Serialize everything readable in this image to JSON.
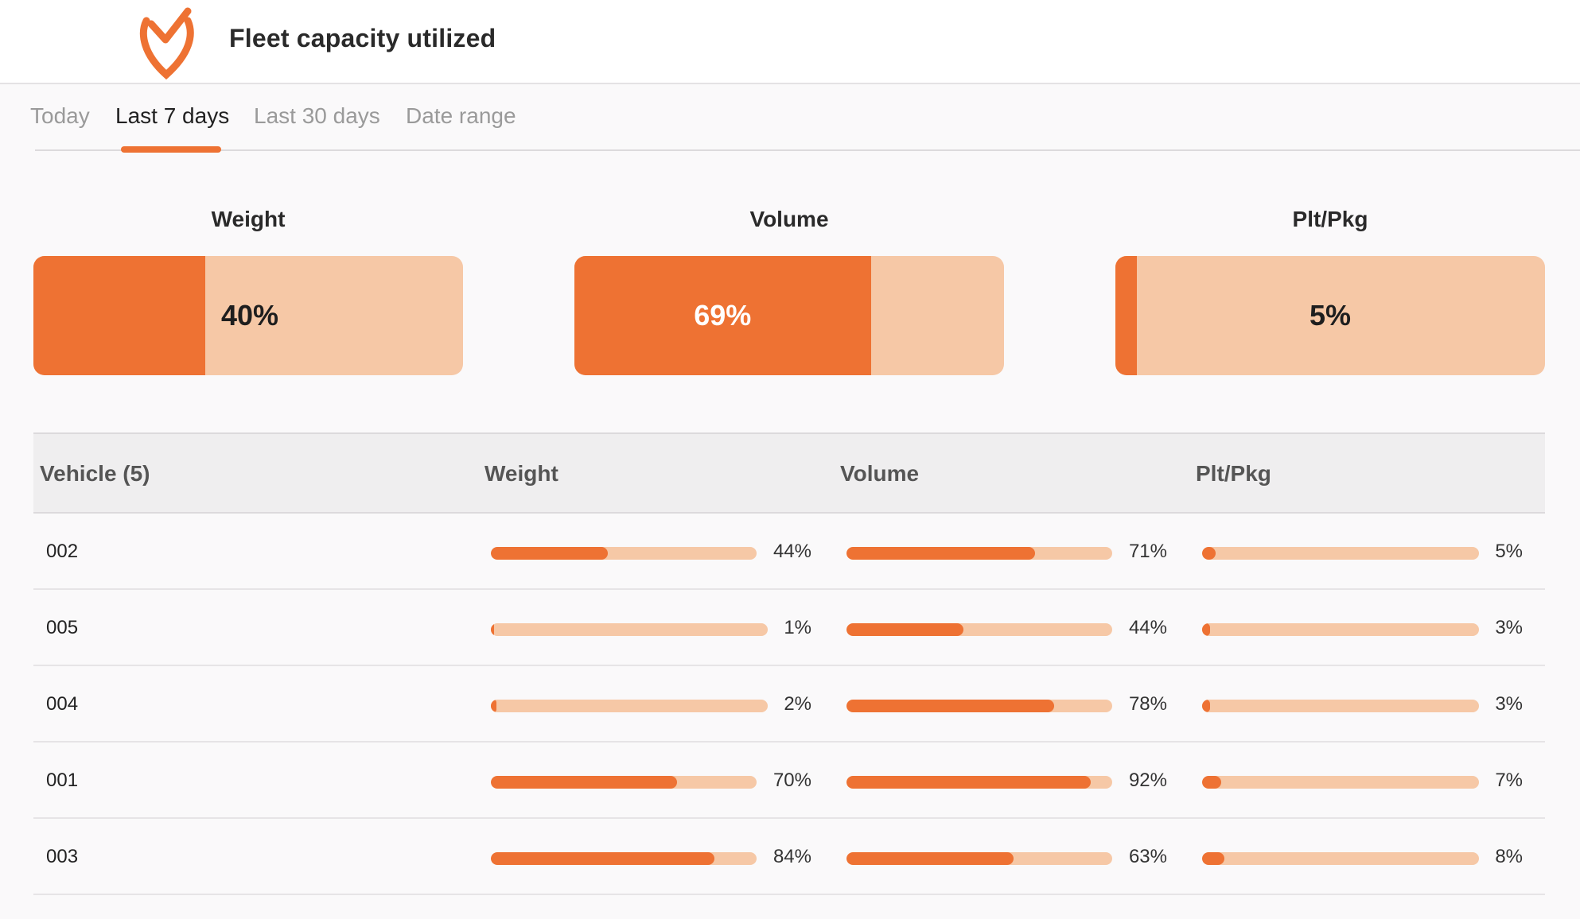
{
  "header": {
    "title": "Fleet capacity utilized",
    "logo_icon": "check-shield-icon"
  },
  "tabs": [
    {
      "label": "Today",
      "active": false
    },
    {
      "label": "Last 7 days",
      "active": true
    },
    {
      "label": "Last 30 days",
      "active": false
    },
    {
      "label": "Date range",
      "active": false
    }
  ],
  "summary": [
    {
      "title": "Weight",
      "percent": 40,
      "label": "40%"
    },
    {
      "title": "Volume",
      "percent": 69,
      "label": "69%"
    },
    {
      "title": "Plt/Pkg",
      "percent": 5,
      "label": "5%"
    }
  ],
  "table": {
    "columns": [
      "Vehicle (5)",
      "Weight",
      "Volume",
      "Plt/Pkg"
    ],
    "rows": [
      {
        "vehicle": "002",
        "weight": 44,
        "weight_label": "44%",
        "volume": 71,
        "volume_label": "71%",
        "plt": 5,
        "plt_label": "5%"
      },
      {
        "vehicle": "005",
        "weight": 1,
        "weight_label": "1%",
        "volume": 44,
        "volume_label": "44%",
        "plt": 3,
        "plt_label": "3%"
      },
      {
        "vehicle": "004",
        "weight": 2,
        "weight_label": "2%",
        "volume": 78,
        "volume_label": "78%",
        "plt": 3,
        "plt_label": "3%"
      },
      {
        "vehicle": "001",
        "weight": 70,
        "weight_label": "70%",
        "volume": 92,
        "volume_label": "92%",
        "plt": 7,
        "plt_label": "7%"
      },
      {
        "vehicle": "003",
        "weight": 84,
        "weight_label": "84%",
        "volume": 63,
        "volume_label": "63%",
        "plt": 8,
        "plt_label": "8%"
      }
    ]
  },
  "colors": {
    "accent": "#ee7233",
    "track": "#f6c8a6"
  }
}
